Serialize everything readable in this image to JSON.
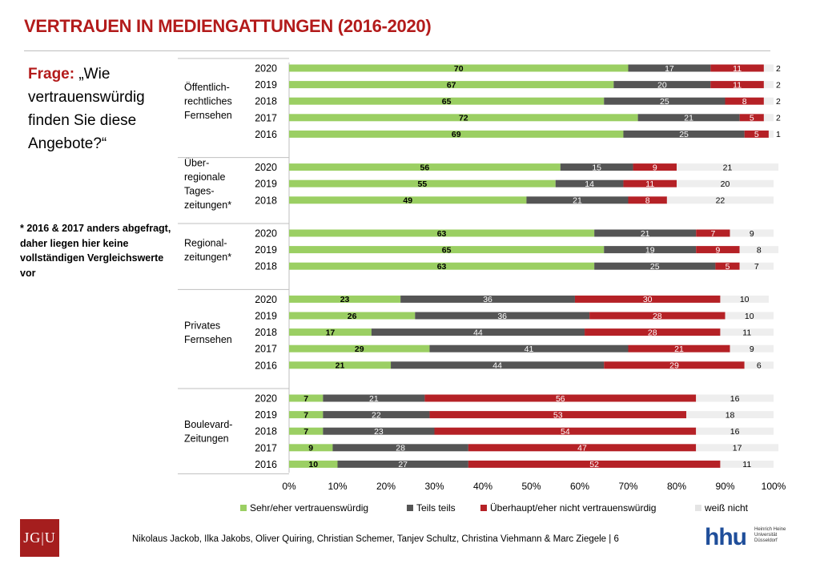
{
  "slide": {
    "title": "VERTRAUEN IN MEDIENGATTUNGEN (2016-2020)",
    "question_label": "Frage:",
    "question_text": " „Wie vertrauenswürdig finden Sie diese Angebote?“",
    "note": "* 2016 & 2017 anders abgefragt, daher liegen hier keine vollständigen Vergleichswerte vor",
    "footer": "Nikolaus Jackob, Ilka Jakobs, Oliver Quiring, Christian Schemer, Tanjev Schultz, Christina Viehmann & Marc Ziegele | 6",
    "logo_left": "JG|U",
    "logo_right_mark": "hhu",
    "logo_right_text": "Heinrich Heine Universität Düsseldorf"
  },
  "chart_data": {
    "type": "bar",
    "orientation": "horizontal",
    "stacked": true,
    "xlim": [
      0,
      100
    ],
    "x_ticks": [
      "0%",
      "10%",
      "20%",
      "30%",
      "40%",
      "50%",
      "60%",
      "70%",
      "80%",
      "90%",
      "100%"
    ],
    "legend_position": "bottom",
    "colors": {
      "Sehr/eher vertrauenswürdig": "#9bcf63",
      "Teils teils": "#555555",
      "Überhaupt/eher nicht vertrauenswürdig": "#b52126",
      "weiß nicht": "#eeeeee"
    },
    "series_names": [
      "Sehr/eher vertrauenswürdig",
      "Teils teils",
      "Überhaupt/eher nicht vertrauenswürdig",
      "weiß nicht"
    ],
    "groups": [
      {
        "name": "Öffentlich-rechtliches Fernsehen",
        "label_lines": [
          "Öffentlich-",
          "rechtliches",
          "Fernsehen"
        ],
        "rows": [
          {
            "year": "2020",
            "values": [
              70,
              17,
              11,
              2
            ]
          },
          {
            "year": "2019",
            "values": [
              67,
              20,
              11,
              2
            ]
          },
          {
            "year": "2018",
            "values": [
              65,
              25,
              8,
              2
            ]
          },
          {
            "year": "2017",
            "values": [
              72,
              21,
              5,
              2
            ]
          },
          {
            "year": "2016",
            "values": [
              69,
              25,
              5,
              1
            ]
          }
        ]
      },
      {
        "name": "Überregionale Tageszeitungen*",
        "label_lines": [
          "Über-",
          "regionale",
          "Tages-",
          "zeitungen*"
        ],
        "rows": [
          {
            "year": "2020",
            "values": [
              56,
              15,
              9,
              21
            ]
          },
          {
            "year": "2019",
            "values": [
              55,
              14,
              11,
              20
            ]
          },
          {
            "year": "2018",
            "values": [
              49,
              21,
              8,
              22
            ]
          }
        ]
      },
      {
        "name": "Regionalzeitungen*",
        "label_lines": [
          "Regional-",
          "zeitungen*"
        ],
        "rows": [
          {
            "year": "2020",
            "values": [
              63,
              21,
              7,
              9
            ]
          },
          {
            "year": "2019",
            "values": [
              65,
              19,
              9,
              8
            ]
          },
          {
            "year": "2018",
            "values": [
              63,
              25,
              5,
              7
            ]
          }
        ]
      },
      {
        "name": "Privates Fernsehen",
        "label_lines": [
          "Privates",
          "Fernsehen"
        ],
        "rows": [
          {
            "year": "2020",
            "values": [
              23,
              36,
              30,
              10
            ]
          },
          {
            "year": "2019",
            "values": [
              26,
              36,
              28,
              10
            ]
          },
          {
            "year": "2018",
            "values": [
              17,
              44,
              28,
              11
            ]
          },
          {
            "year": "2017",
            "values": [
              29,
              41,
              21,
              9
            ]
          },
          {
            "year": "2016",
            "values": [
              21,
              44,
              29,
              6
            ]
          }
        ]
      },
      {
        "name": "Boulevard-Zeitungen",
        "label_lines": [
          "Boulevard-",
          "Zeitungen"
        ],
        "rows": [
          {
            "year": "2020",
            "values": [
              7,
              21,
              56,
              16
            ]
          },
          {
            "year": "2019",
            "values": [
              7,
              22,
              53,
              18
            ]
          },
          {
            "year": "2018",
            "values": [
              7,
              23,
              54,
              16
            ]
          },
          {
            "year": "2017",
            "values": [
              9,
              28,
              47,
              17
            ]
          },
          {
            "year": "2016",
            "values": [
              10,
              27,
              52,
              11
            ]
          }
        ]
      }
    ]
  }
}
